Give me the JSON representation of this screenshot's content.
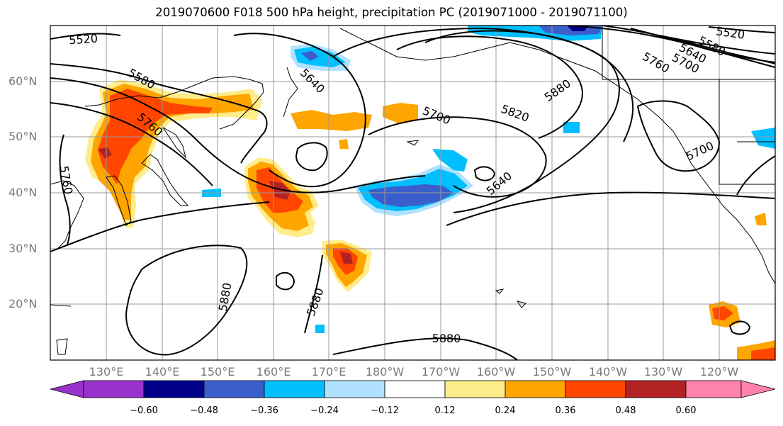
{
  "title": "2019070600 F018 500 hPa height, precipitation PC (2019071000 - 2019071100)",
  "lat_labels": [
    "60°N",
    "50°N",
    "40°N",
    "30°N",
    "20°N"
  ],
  "lon_labels": [
    "130°E",
    "140°E",
    "150°E",
    "160°E",
    "170°E",
    "180°W",
    "170°W",
    "160°W",
    "150°W",
    "140°W",
    "130°W",
    "120°W"
  ],
  "contour_labels": [
    "5520",
    "5520",
    "5580",
    "5580",
    "5640",
    "5640",
    "5640",
    "5700",
    "5700",
    "5700",
    "5760",
    "5760",
    "5760",
    "5820",
    "5880",
    "5880",
    "5880",
    "5880"
  ],
  "colorbar": {
    "ticks": [
      "−0.60",
      "−0.48",
      "−0.36",
      "−0.24",
      "−0.12",
      "0.12",
      "0.24",
      "0.36",
      "0.48",
      "0.60"
    ],
    "colors": [
      "#9932cc",
      "#00008b",
      "#3a5fcd",
      "#00bfff",
      "#b0e2ff",
      "#ffffff",
      "#ffec8b",
      "#ffa500",
      "#ff4500",
      "#b22222",
      "#ff82ab"
    ]
  }
}
